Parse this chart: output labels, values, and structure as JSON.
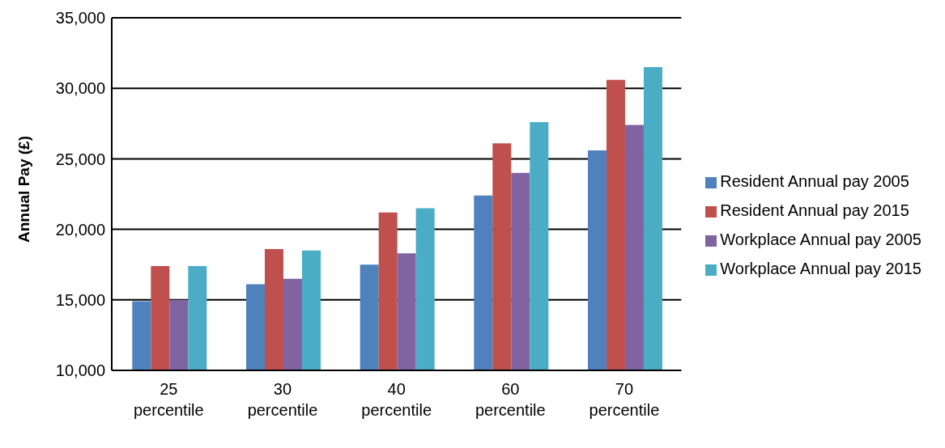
{
  "chart_data": {
    "type": "bar",
    "ylabel": "Annual Pay (£)",
    "categories": [
      "25 percentile",
      "30 percentile",
      "40 percentile",
      "60 percentile",
      "70 percentile"
    ],
    "series": [
      {
        "name": "Resident Annual pay 2005",
        "color": "#4f81bd",
        "values": [
          14900,
          16100,
          17500,
          22400,
          25600
        ]
      },
      {
        "name": "Resident Annual pay 2015",
        "color": "#c0504d",
        "values": [
          17400,
          18600,
          21200,
          26100,
          30600
        ]
      },
      {
        "name": "Workplace Annual pay 2005",
        "color": "#8064a2",
        "values": [
          15000,
          16500,
          18300,
          24000,
          27400
        ]
      },
      {
        "name": "Workplace Annual pay 2015",
        "color": "#4bacc6",
        "values": [
          17400,
          18500,
          21500,
          27600,
          31500
        ]
      }
    ],
    "ylim": [
      10000,
      35000
    ],
    "yticks": [
      {
        "value": 10000,
        "label": "10,000"
      },
      {
        "value": 15000,
        "label": "15,000"
      },
      {
        "value": 20000,
        "label": "20,000"
      },
      {
        "value": 25000,
        "label": "25,000"
      },
      {
        "value": 30000,
        "label": "30,000"
      },
      {
        "value": 35000,
        "label": "35,000"
      }
    ],
    "grid": "y",
    "legend": "right"
  }
}
